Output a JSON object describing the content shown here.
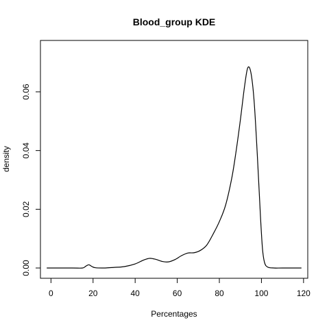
{
  "chart_data": {
    "type": "line",
    "title": "Blood_group  KDE",
    "xlabel": "Percentages",
    "ylabel": "density",
    "xlim": [
      -5,
      122
    ],
    "ylim": [
      -0.0035,
      0.0775
    ],
    "x_ticks": [
      0,
      20,
      40,
      60,
      80,
      100,
      120
    ],
    "y_ticks": [
      0.0,
      0.02,
      0.04,
      0.06
    ],
    "x_tick_labels": [
      "0",
      "20",
      "40",
      "60",
      "80",
      "100",
      "120"
    ],
    "y_tick_labels": [
      "0.00",
      "0.02",
      "0.04",
      "0.06"
    ],
    "grid": false,
    "legend": "none",
    "line_color": "#000000",
    "series": [
      {
        "x": [
          -2,
          10,
          15,
          16.5,
          18,
          19.5,
          21,
          25,
          30,
          35,
          40,
          44,
          47,
          50,
          53,
          56,
          59,
          62,
          65,
          68,
          71,
          74,
          77,
          80,
          83,
          86,
          88,
          90,
          92,
          93.5,
          95,
          96.5,
          98,
          99.5,
          100.5,
          101.5,
          103,
          106,
          110,
          119
        ],
        "y": [
          0.0,
          0.0,
          0.0,
          0.0006,
          0.0011,
          0.0005,
          0.0001,
          0.0,
          0.0002,
          0.0005,
          0.0014,
          0.0027,
          0.0033,
          0.0029,
          0.0022,
          0.0021,
          0.0029,
          0.0042,
          0.0051,
          0.0052,
          0.006,
          0.0078,
          0.0115,
          0.0158,
          0.0215,
          0.031,
          0.04,
          0.0505,
          0.062,
          0.0682,
          0.0665,
          0.057,
          0.039,
          0.018,
          0.0065,
          0.0018,
          0.0003,
          0.0,
          0.0,
          0.0
        ]
      }
    ]
  }
}
